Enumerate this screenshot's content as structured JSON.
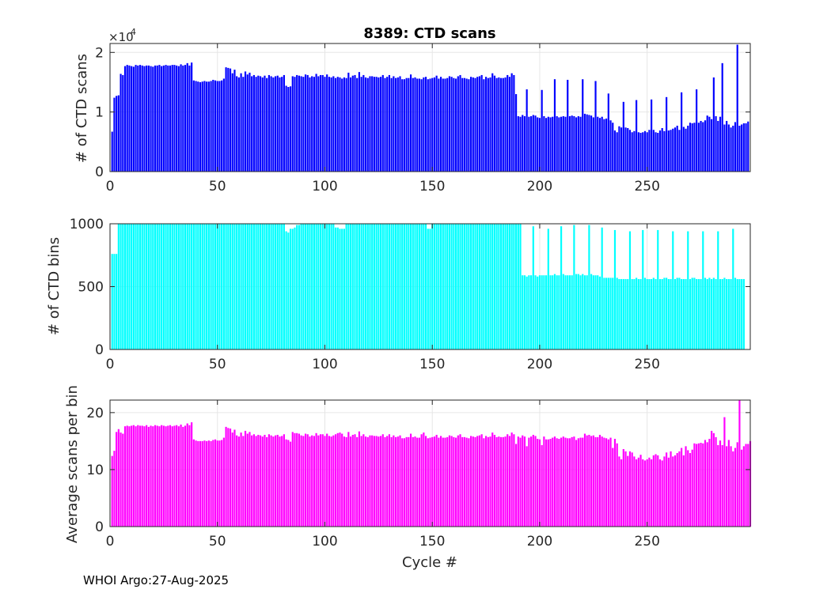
{
  "footer": "WHOI Argo:27-Aug-2025",
  "chart_data": [
    {
      "type": "bar",
      "title": "8389: CTD scans",
      "ylabel": "# of CTD scans",
      "xlabel": "",
      "xlim": [
        0,
        298
      ],
      "ylim": [
        0,
        21500
      ],
      "xticks": [
        0,
        50,
        100,
        150,
        200,
        250
      ],
      "yticks": [
        0,
        10000,
        20000
      ],
      "ytick_labels": [
        "0",
        "1",
        "2"
      ],
      "y_exponent_label": "×10",
      "y_exponent_power": "4",
      "grid": true,
      "color": "#0000ff",
      "cycles": "1..297",
      "values": [
        6700,
        12400,
        12700,
        12800,
        16400,
        16200,
        17700,
        17900,
        17800,
        17700,
        17600,
        17900,
        17800,
        17900,
        17800,
        17700,
        17800,
        17800,
        17700,
        17600,
        17800,
        17800,
        17900,
        17700,
        17800,
        17900,
        17800,
        17800,
        17900,
        17900,
        17800,
        17700,
        18000,
        17800,
        17900,
        18200,
        17800,
        18300,
        15300,
        15200,
        15100,
        15000,
        15100,
        15200,
        15100,
        15100,
        15200,
        15400,
        15300,
        15200,
        15200,
        15300,
        15600,
        17500,
        17400,
        17300,
        16500,
        17100,
        16000,
        15800,
        16500,
        15900,
        16800,
        16300,
        16600,
        16000,
        16200,
        15900,
        16100,
        16000,
        15800,
        16100,
        15700,
        16200,
        16000,
        15800,
        16000,
        16100,
        15800,
        15900,
        16200,
        14400,
        14200,
        14300,
        16000,
        15900,
        16200,
        16100,
        16000,
        15900,
        16300,
        16200,
        15800,
        16000,
        15900,
        16400,
        16000,
        16200,
        16200,
        15900,
        16300,
        15900,
        15800,
        16000,
        15700,
        15900,
        15800,
        15600,
        15800,
        15700,
        16600,
        15800,
        16100,
        16200,
        15700,
        16700,
        15900,
        16200,
        15800,
        15700,
        16000,
        16000,
        15900,
        15900,
        15800,
        15900,
        16200,
        15700,
        15900,
        16200,
        15700,
        16000,
        15700,
        15800,
        16000,
        15500,
        15500,
        15700,
        15700,
        16300,
        15700,
        15800,
        15600,
        15600,
        15500,
        15800,
        15900,
        15500,
        15600,
        15700,
        15800,
        16100,
        15600,
        15900,
        15600,
        15600,
        15700,
        16000,
        15900,
        15700,
        15600,
        16000,
        16200,
        15700,
        15700,
        15600,
        15500,
        15900,
        15800,
        15700,
        15900,
        16000,
        16200,
        15500,
        15900,
        15700,
        15800,
        16500,
        16100,
        15700,
        15800,
        15700,
        15700,
        15800,
        16200,
        15900,
        16500,
        16200,
        13000,
        9300,
        9200,
        9500,
        9300,
        13800,
        9200,
        9300,
        9500,
        9400,
        9100,
        9000,
        13700,
        9300,
        9000,
        9200,
        9100,
        9200,
        15500,
        9300,
        9100,
        9200,
        9300,
        9200,
        15400,
        9300,
        9400,
        9300,
        9100,
        9300,
        9200,
        15500,
        9700,
        9600,
        9500,
        9400,
        9100,
        15200,
        9200,
        9000,
        9200,
        8800,
        8900,
        13100,
        8600,
        8200,
        6900,
        6600,
        7600,
        7400,
        11700,
        7400,
        7300,
        7000,
        6600,
        6800,
        12000,
        6600,
        6500,
        6600,
        6800,
        6600,
        7000,
        12100,
        7000,
        6600,
        6500,
        6900,
        7300,
        6800,
        12500,
        6900,
        7000,
        7200,
        7400,
        7700,
        7000,
        13300,
        7500,
        7200,
        7700,
        8200,
        8100,
        8200,
        13800,
        8200,
        8500,
        8300,
        8600,
        9400,
        9200,
        8800,
        15800,
        9300,
        8500,
        9200,
        18200,
        7900,
        8500,
        7900,
        7400,
        7700,
        8300,
        21300,
        7700,
        7900,
        8100,
        8100,
        8400
      ]
    },
    {
      "type": "bar",
      "title": "",
      "ylabel": "# of CTD bins",
      "xlabel": "",
      "xlim": [
        0,
        298
      ],
      "ylim": [
        0,
        1000
      ],
      "xticks": [
        0,
        50,
        100,
        150,
        200,
        250
      ],
      "yticks": [
        0,
        500,
        1000
      ],
      "ytick_labels": [
        "0",
        "500",
        "1000"
      ],
      "grid": true,
      "color": "#00ffff",
      "cycles": "1..297",
      "values": [
        760,
        760,
        760,
        1000,
        1000,
        1000,
        1000,
        1000,
        1000,
        1000,
        1000,
        1000,
        1000,
        1000,
        1000,
        1000,
        1000,
        1000,
        1000,
        1000,
        1000,
        1000,
        1000,
        1000,
        1000,
        1000,
        1000,
        1000,
        1000,
        1000,
        1000,
        1000,
        1000,
        1000,
        1000,
        1000,
        1000,
        1000,
        1000,
        1000,
        1000,
        1000,
        1000,
        1000,
        1000,
        1000,
        1000,
        1000,
        1000,
        1000,
        1000,
        1000,
        1000,
        1000,
        1000,
        1000,
        1000,
        1000,
        1000,
        1000,
        1000,
        1000,
        1000,
        1000,
        1000,
        1000,
        1000,
        1000,
        1000,
        1000,
        1000,
        1000,
        1000,
        1000,
        1000,
        1000,
        1000,
        1000,
        1000,
        1000,
        1000,
        940,
        930,
        960,
        960,
        970,
        990,
        990,
        1000,
        1000,
        1000,
        1000,
        1000,
        1000,
        1000,
        1000,
        1000,
        1000,
        1000,
        1000,
        1000,
        1000,
        1000,
        1000,
        970,
        970,
        960,
        960,
        960,
        1000,
        1000,
        1000,
        1000,
        1000,
        1000,
        1000,
        1000,
        1000,
        1000,
        1000,
        1000,
        1000,
        1000,
        1000,
        1000,
        1000,
        1000,
        1000,
        1000,
        1000,
        1000,
        1000,
        1000,
        1000,
        1000,
        1000,
        1000,
        1000,
        1000,
        1000,
        1000,
        1000,
        1000,
        1000,
        1000,
        1000,
        1000,
        960,
        960,
        1000,
        1000,
        1000,
        1000,
        1000,
        1000,
        1000,
        1000,
        1000,
        1000,
        1000,
        1000,
        1000,
        1000,
        1000,
        1000,
        1000,
        1000,
        1000,
        1000,
        1000,
        1000,
        1000,
        1000,
        1000,
        1000,
        1000,
        1000,
        1000,
        1000,
        1000,
        1000,
        1000,
        1000,
        1000,
        1000,
        1000,
        1000,
        1000,
        1000,
        1000,
        1000,
        590,
        590,
        580,
        590,
        590,
        980,
        590,
        580,
        590,
        590,
        590,
        590,
        960,
        590,
        590,
        600,
        590,
        590,
        980,
        600,
        590,
        590,
        590,
        590,
        990,
        600,
        600,
        590,
        600,
        590,
        590,
        990,
        600,
        590,
        590,
        590,
        580,
        970,
        570,
        570,
        570,
        570,
        570,
        950,
        570,
        560,
        560,
        560,
        560,
        560,
        940,
        560,
        560,
        570,
        560,
        560,
        950,
        570,
        560,
        560,
        560,
        570,
        560,
        950,
        560,
        560,
        570,
        570,
        560,
        560,
        940,
        560,
        570,
        570,
        560,
        560,
        560,
        940,
        560,
        570,
        570,
        560,
        560,
        560,
        940,
        570,
        560,
        570,
        560,
        570,
        560,
        940,
        560,
        560,
        570,
        560,
        560,
        560,
        960,
        570,
        560,
        560,
        560,
        560
      ]
    },
    {
      "type": "bar",
      "title": "",
      "ylabel": "Average scans per bin",
      "xlabel": "Cycle #",
      "xlim": [
        0,
        298
      ],
      "ylim": [
        0,
        22.2
      ],
      "xticks": [
        0,
        50,
        100,
        150,
        200,
        250
      ],
      "yticks": [
        0,
        10,
        20
      ],
      "ytick_labels": [
        "0",
        "10",
        "20"
      ],
      "grid": true,
      "color": "#ff00ff",
      "cycles": "1..297",
      "values": [
        12.4,
        13.3,
        16.6,
        17.1,
        16.5,
        16.3,
        17.6,
        17.7,
        17.6,
        17.7,
        17.8,
        17.6,
        17.8,
        17.7,
        17.7,
        17.6,
        17.8,
        17.5,
        17.7,
        17.6,
        17.8,
        17.7,
        17.6,
        17.8,
        17.7,
        17.6,
        17.7,
        17.8,
        17.6,
        17.7,
        17.8,
        17.6,
        17.9,
        17.5,
        17.7,
        18.1,
        17.8,
        18.3,
        15.3,
        15.1,
        15.0,
        15.0,
        15.0,
        15.1,
        15.0,
        15.1,
        15.0,
        15.2,
        15.3,
        15.1,
        15.1,
        15.2,
        15.6,
        17.5,
        17.3,
        17.2,
        16.5,
        17.0,
        16.0,
        15.8,
        16.5,
        15.9,
        16.8,
        16.3,
        16.6,
        16.0,
        16.2,
        15.9,
        16.1,
        16.0,
        15.8,
        16.1,
        15.7,
        16.2,
        16.0,
        15.8,
        16.0,
        16.1,
        15.8,
        15.9,
        16.2,
        15.3,
        15.2,
        14.9,
        16.6,
        16.4,
        16.4,
        16.3,
        16.0,
        15.9,
        16.3,
        16.2,
        15.8,
        16.0,
        15.9,
        16.4,
        16.0,
        16.2,
        16.2,
        15.9,
        16.3,
        15.9,
        15.8,
        16.0,
        16.2,
        16.4,
        16.5,
        16.3,
        15.8,
        15.7,
        16.6,
        15.8,
        16.1,
        16.2,
        15.7,
        16.7,
        15.9,
        16.2,
        15.8,
        15.7,
        16.0,
        16.0,
        15.9,
        15.9,
        15.8,
        15.9,
        16.2,
        15.7,
        15.9,
        16.2,
        15.7,
        16.0,
        15.7,
        15.8,
        16.0,
        15.5,
        15.5,
        15.7,
        15.7,
        16.3,
        15.7,
        15.8,
        15.6,
        15.6,
        16.2,
        16.5,
        15.9,
        15.5,
        15.6,
        15.7,
        15.8,
        16.1,
        15.6,
        15.9,
        15.6,
        15.6,
        15.7,
        16.0,
        15.9,
        15.7,
        15.6,
        16.0,
        16.2,
        15.7,
        15.7,
        15.6,
        15.5,
        15.9,
        15.8,
        15.7,
        15.9,
        16.0,
        16.2,
        15.5,
        15.9,
        15.7,
        15.8,
        16.5,
        16.1,
        15.7,
        15.8,
        15.7,
        15.7,
        15.8,
        16.2,
        15.9,
        16.5,
        16.2,
        14.5,
        15.8,
        15.6,
        16.0,
        15.8,
        14.1,
        15.6,
        15.8,
        16.1,
        15.9,
        15.4,
        15.3,
        14.3,
        15.8,
        15.3,
        15.3,
        15.4,
        15.6,
        15.8,
        15.5,
        15.4,
        15.6,
        15.8,
        15.6,
        15.5,
        15.5,
        15.7,
        15.8,
        15.2,
        15.5,
        15.6,
        15.6,
        16.3,
        16.0,
        16.1,
        15.9,
        16.0,
        15.7,
        15.7,
        16.1,
        15.8,
        15.6,
        15.5,
        15.3,
        15.6,
        13.8,
        15.4,
        14.6,
        12.3,
        11.8,
        13.6,
        13.2,
        12.4,
        13.2,
        13.0,
        12.3,
        11.8,
        12.1,
        12.6,
        11.8,
        11.6,
        11.8,
        12.1,
        11.8,
        12.5,
        12.7,
        12.5,
        11.8,
        11.6,
        12.3,
        13.0,
        12.1,
        13.2,
        12.3,
        12.5,
        12.9,
        13.2,
        13.8,
        12.5,
        14.1,
        13.4,
        12.9,
        13.5,
        14.6,
        14.5,
        14.6,
        14.7,
        14.6,
        15.2,
        14.8,
        15.4,
        16.8,
        16.4,
        15.7,
        14.3,
        15.1,
        14.3,
        19.2,
        14.1,
        15.2,
        14.1,
        13.2,
        13.8,
        14.8,
        22.2,
        13.5,
        14.1,
        14.5,
        14.5,
        15.0
      ]
    }
  ]
}
